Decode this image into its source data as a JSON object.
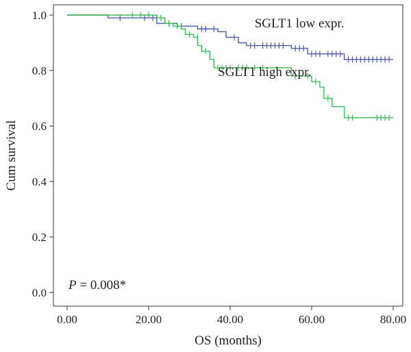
{
  "chart_data": {
    "type": "line",
    "subtype": "kaplan-meier",
    "xlabel": "OS (months)",
    "ylabel": "Cum survival",
    "xlim": [
      0,
      80
    ],
    "ylim": [
      0,
      1.0
    ],
    "xticks": [
      "0.00",
      "20.00",
      "40.00",
      "60.00",
      "80.00"
    ],
    "yticks": [
      "0.0",
      "0.2",
      "0.4",
      "0.6",
      "0.8",
      "1.0"
    ],
    "grid": false,
    "annotation": {
      "prefix": "P",
      "text": " = 0.008*"
    },
    "series": [
      {
        "name": "SGLT1 low expr.",
        "color": "#4a5aa8",
        "steps": [
          [
            0,
            1.0
          ],
          [
            10,
            0.99
          ],
          [
            22,
            0.97
          ],
          [
            27,
            0.96
          ],
          [
            32,
            0.95
          ],
          [
            37,
            0.94
          ],
          [
            39,
            0.92
          ],
          [
            42,
            0.9
          ],
          [
            44,
            0.89
          ],
          [
            55,
            0.88
          ],
          [
            59,
            0.86
          ],
          [
            68,
            0.84
          ],
          [
            80,
            0.84
          ]
        ],
        "censors": [
          [
            13,
            0.99
          ],
          [
            19,
            0.99
          ],
          [
            21,
            0.99
          ],
          [
            25,
            0.97
          ],
          [
            28,
            0.96
          ],
          [
            33,
            0.95
          ],
          [
            34,
            0.95
          ],
          [
            36,
            0.95
          ],
          [
            41,
            0.92
          ],
          [
            45,
            0.89
          ],
          [
            46,
            0.89
          ],
          [
            48,
            0.89
          ],
          [
            49,
            0.89
          ],
          [
            50,
            0.89
          ],
          [
            51,
            0.89
          ],
          [
            52,
            0.89
          ],
          [
            53,
            0.89
          ],
          [
            56,
            0.88
          ],
          [
            57,
            0.88
          ],
          [
            58,
            0.88
          ],
          [
            60,
            0.86
          ],
          [
            61,
            0.86
          ],
          [
            62,
            0.86
          ],
          [
            64,
            0.86
          ],
          [
            65,
            0.86
          ],
          [
            66,
            0.86
          ],
          [
            67,
            0.86
          ],
          [
            69,
            0.84
          ],
          [
            70,
            0.84
          ],
          [
            71,
            0.84
          ],
          [
            72,
            0.84
          ],
          [
            73,
            0.84
          ],
          [
            74,
            0.84
          ],
          [
            75,
            0.84
          ],
          [
            76,
            0.84
          ],
          [
            77,
            0.84
          ],
          [
            78,
            0.84
          ],
          [
            79,
            0.84
          ]
        ]
      },
      {
        "name": "SGLT1 high expr.",
        "color": "#3fb75a",
        "steps": [
          [
            0,
            1.0
          ],
          [
            22,
            0.99
          ],
          [
            24,
            0.97
          ],
          [
            26,
            0.96
          ],
          [
            28,
            0.95
          ],
          [
            29,
            0.93
          ],
          [
            31,
            0.92
          ],
          [
            32,
            0.89
          ],
          [
            33,
            0.87
          ],
          [
            35,
            0.84
          ],
          [
            36,
            0.81
          ],
          [
            55,
            0.78
          ],
          [
            60,
            0.76
          ],
          [
            62,
            0.74
          ],
          [
            63,
            0.7
          ],
          [
            65,
            0.67
          ],
          [
            68,
            0.63
          ],
          [
            80,
            0.63
          ]
        ],
        "censors": [
          [
            16,
            1.0
          ],
          [
            18,
            1.0
          ],
          [
            20,
            1.0
          ],
          [
            23,
            0.99
          ],
          [
            25,
            0.97
          ],
          [
            27,
            0.96
          ],
          [
            30,
            0.93
          ],
          [
            32,
            0.92
          ],
          [
            34,
            0.87
          ],
          [
            37,
            0.81
          ],
          [
            38,
            0.81
          ],
          [
            39,
            0.81
          ],
          [
            40,
            0.81
          ],
          [
            42,
            0.81
          ],
          [
            43,
            0.81
          ],
          [
            44,
            0.81
          ],
          [
            46,
            0.81
          ],
          [
            48,
            0.81
          ],
          [
            56,
            0.78
          ],
          [
            59,
            0.78
          ],
          [
            61,
            0.76
          ],
          [
            64,
            0.7
          ],
          [
            69,
            0.63
          ],
          [
            70,
            0.63
          ],
          [
            76,
            0.63
          ],
          [
            77,
            0.63
          ],
          [
            78,
            0.63
          ],
          [
            79,
            0.63
          ]
        ]
      }
    ],
    "series_labels_at": [
      [
        46,
        0.955
      ],
      [
        37,
        0.78
      ]
    ]
  }
}
